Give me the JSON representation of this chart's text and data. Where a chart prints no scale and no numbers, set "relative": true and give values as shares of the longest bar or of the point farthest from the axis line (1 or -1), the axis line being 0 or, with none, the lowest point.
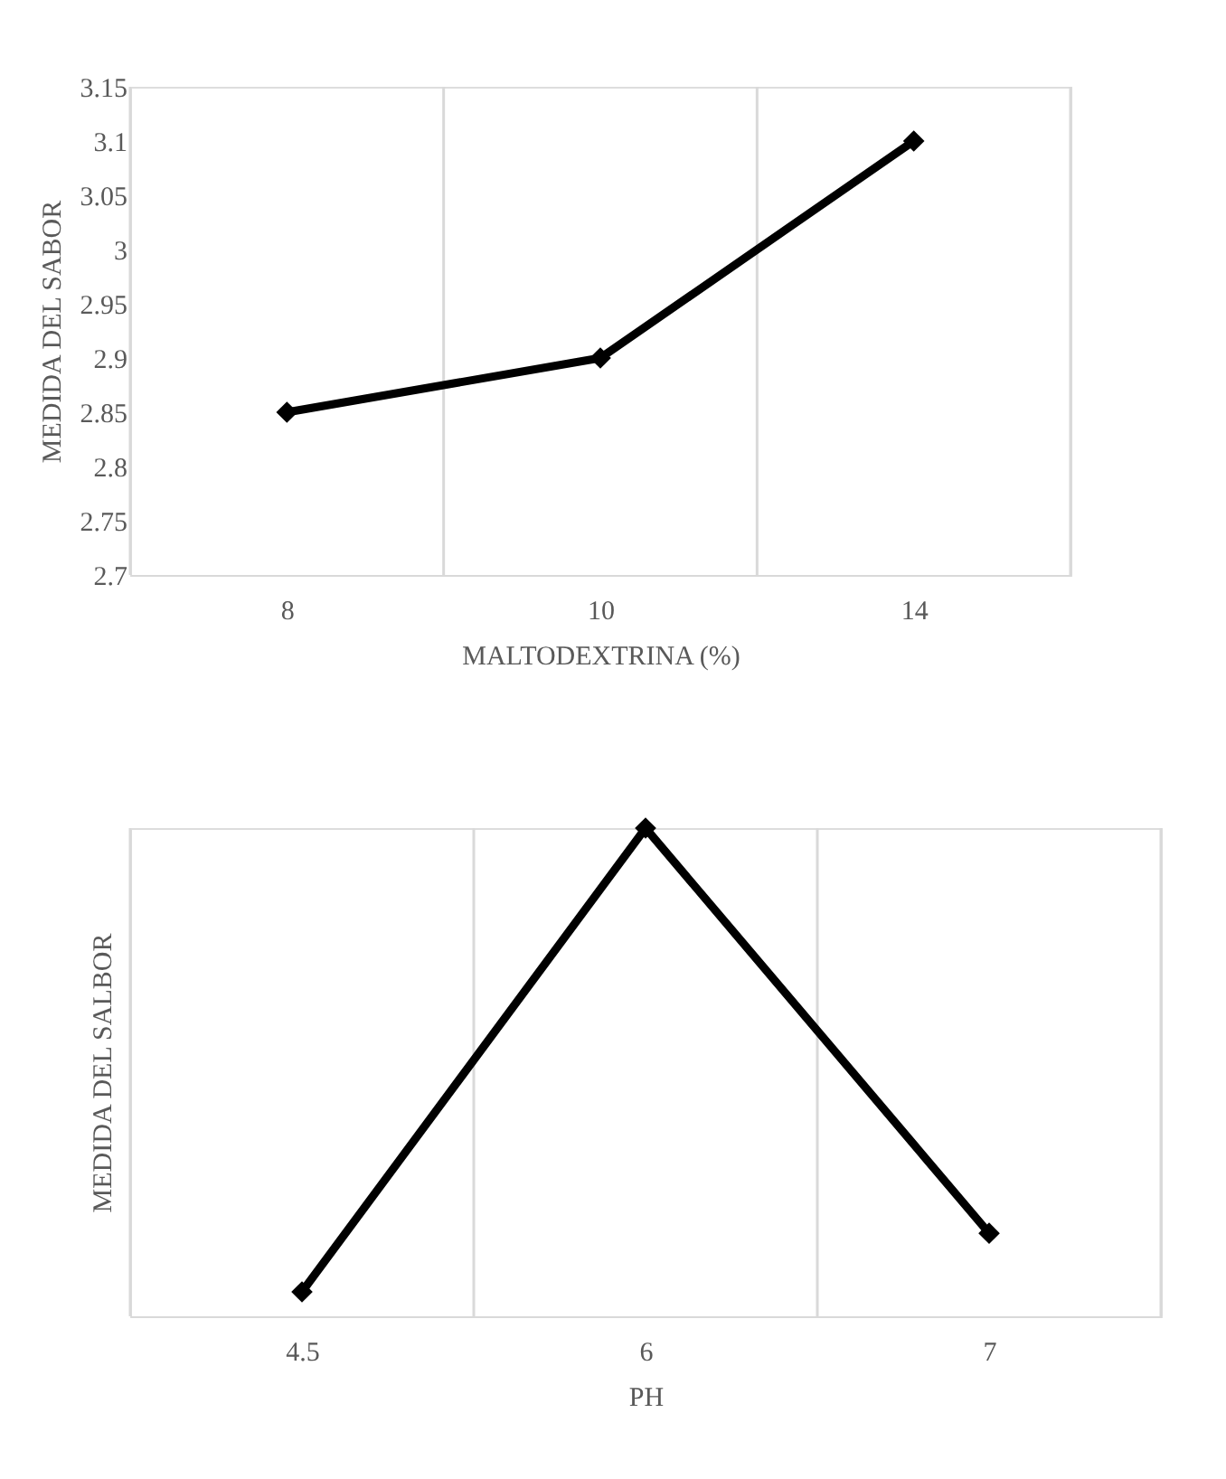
{
  "chart_data": [
    {
      "type": "line",
      "xlabel": "MALTODEXTRINA  (%)",
      "ylabel": "MEDIDA DEL SABOR",
      "categories": [
        "8",
        "10",
        "14"
      ],
      "series": [
        {
          "color": "#000000",
          "values": [
            2.85,
            2.9,
            3.1
          ]
        }
      ],
      "ylim": [
        2.7,
        3.15
      ],
      "yticks": [
        2.7,
        2.75,
        2.8,
        2.85,
        2.9,
        2.95,
        3,
        3.05,
        3.1,
        3.15
      ],
      "grid": "x",
      "marker": "diamond",
      "line_style": "solid"
    },
    {
      "type": "line",
      "xlabel": "PH",
      "ylabel": "MEDIDA DEL SALBOR",
      "categories": [
        "4.5",
        "6",
        "7"
      ],
      "relative": true,
      "series": [
        {
          "color": "#000000",
          "values": [
            0.05,
            1,
            0.17
          ]
        }
      ],
      "grid": "x",
      "marker": "diamond",
      "line_style": "solid"
    }
  ]
}
